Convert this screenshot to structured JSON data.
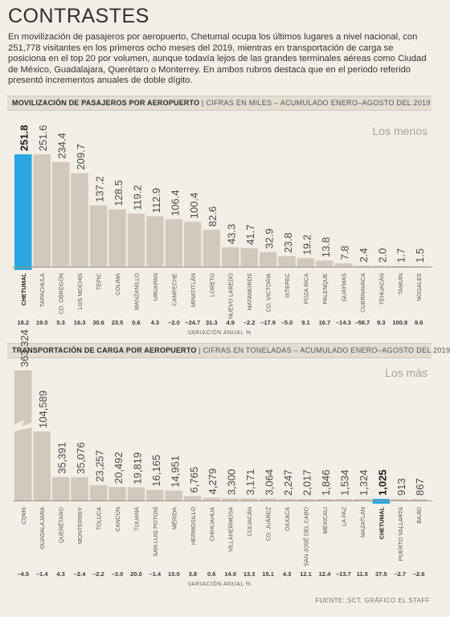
{
  "title": "CONTRASTES",
  "intro": "En movilización de pasajeros por aeropuerto, Chetumal ocupa los últimos lugares a nivel nacional, con 251,778 visitantes en los primeros ocho meses del 2019, mientras en transportación de carga se posiciona en el top 20 por volumen, aunque todavía lejos de las grandes terminales aéreas como Ciudad de México, Guadalajara, Querétaro o Monterrey. En ambos rubros destaca que en el periodo referido presentó incrementos anuales de doble dígito.",
  "chart1_header": {
    "title": "MOVILIZACIÓN DE PASAJEROS POR AEROPUERTO",
    "subtitle": "CIFRAS EN MILES – ACUMULADO ENERO–AGOSTO DEL 2019"
  },
  "chart2_header": {
    "title": "TRANSPORTACIÓN DE CARGA POR AEROPUERTO",
    "subtitle": "CIFRAS EN TONELADAS – ACUMULADO ENERO–AGOSTO DEL 2019"
  },
  "source": "FUENTE: SCT. GRÁFICO EL STAFF",
  "colors": {
    "bar": "#d2c8bb",
    "highlight": "#29a7e1",
    "background": "#f3efe7",
    "text": "#3a3a3a"
  },
  "chart_data": [
    {
      "type": "bar",
      "title": "MOVILIZACIÓN DE PASAJEROS POR AEROPUERTO",
      "corner_label": "Los menos",
      "highlight": "CHETUMAL",
      "categories": [
        "CHETUMAL",
        "TAPACHULA",
        "CD. OBREGÓN",
        "LOS MOCHIS",
        "TEPIC",
        "COLIMA",
        "MANZANILLO",
        "URUAPAN",
        "CAMPECHE",
        "MINATITLÁN",
        "LORETO",
        "NUEVO LAREDO",
        "MATAMOROS",
        "CD. VICTORIA",
        "IXTEPEC",
        "POZA RICA",
        "PALENQUE",
        "GUAYMAS",
        "CUERNAVACA",
        "TEHUACÁN",
        "TAMUÍN",
        "NOGALES"
      ],
      "values": [
        251.8,
        251.6,
        234.4,
        209.7,
        137.2,
        128.5,
        119.2,
        112.9,
        106.4,
        100.4,
        82.6,
        43.3,
        41.7,
        32.9,
        23.8,
        19.2,
        13.8,
        7.8,
        2.4,
        2.0,
        1.7,
        1.5
      ],
      "value_labels": [
        "251.8",
        "251.6",
        "234.4",
        "209.7",
        "137.2",
        "128.5",
        "119.2",
        "112.9",
        "106.4",
        "100.4",
        "82.6",
        "43.3",
        "41.7",
        "32.9",
        "23.8",
        "19.2",
        "13.8",
        "7.8",
        "2.4",
        "2.0",
        "1.7",
        "1.5"
      ],
      "variation_labels": [
        "18.2",
        "19.0",
        "5.3",
        "16.3",
        "30.6",
        "23.5",
        "0.6",
        "4.3",
        "–2.0",
        "–24.7",
        "31.3",
        "4.9",
        "–2.2",
        "–17.9",
        "–5.0",
        "9.1",
        "16.7",
        "–14.3",
        "–58.7",
        "9.3",
        "100.8",
        "9.6"
      ],
      "variation_caption": "VARIACIÓN ANUAL %",
      "ylim": [
        0,
        252
      ]
    },
    {
      "type": "bar",
      "title": "TRANSPORTACIÓN DE CARGA POR AEROPUERTO",
      "corner_label": "Los más",
      "highlight": "CHETUMAL",
      "broken_first_bar": true,
      "categories": [
        "CDMX",
        "GUADALAJARA",
        "QUERÉTARO",
        "MONTERREY",
        "TOLUCA",
        "CANCÚN",
        "TIJUANA",
        "SAN LUIS POTOSÍ",
        "MÉRIDA",
        "HERMOSILLO",
        "CHIHUAHUA",
        "VILLAHERMOSA",
        "CULIACÁN",
        "CD. JUÁREZ",
        "OAXACA",
        "SAN JOSÉ DEL CABO",
        "MEXICALI",
        "LA PAZ",
        "MAZATLÁN",
        "CHETUMAL",
        "PUERTO VALLARTA",
        "BAJÍO"
      ],
      "values": [
        363324,
        104589,
        35391,
        35076,
        23257,
        20492,
        19819,
        16165,
        14951,
        6765,
        4279,
        3300,
        3171,
        3064,
        2247,
        2017,
        1846,
        1534,
        1324,
        1025,
        913,
        867
      ],
      "value_labels": [
        "363,324",
        "104,589",
        "35,391",
        "35,076",
        "23,257",
        "20,492",
        "19,819",
        "16,165",
        "14,951",
        "6,765",
        "4,279",
        "3,300",
        "3,171",
        "3,064",
        "2,247",
        "2,017",
        "1,846",
        "1,534",
        "1,324",
        "1,025",
        "913",
        "867"
      ],
      "variation_labels": [
        "–4.5",
        "–1.4",
        "4.3",
        "–2.4",
        "–2.2",
        "–3.0",
        "20.0",
        "–1.4",
        "10.0",
        "3.8",
        "0.6",
        "14.0",
        "13.3",
        "15.1",
        "4.3",
        "12.1",
        "12.4",
        "–13.7",
        "11.5",
        "37.5",
        "–2.7",
        "–2.6"
      ],
      "variation_caption": "VARIACIÓN ANUAL %"
    }
  ]
}
